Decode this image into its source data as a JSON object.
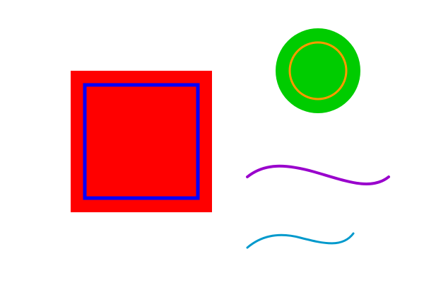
{
  "background": "#ffffff",
  "shapes": {
    "square": {
      "fill": "#ff0000",
      "inner_outline": "#0000ff"
    },
    "circle": {
      "fill": "#00cc00",
      "inner_outline": "#ff9900"
    },
    "wave_upper": {
      "stroke": "#9900cc"
    },
    "wave_lower": {
      "stroke": "#0099cc"
    }
  }
}
